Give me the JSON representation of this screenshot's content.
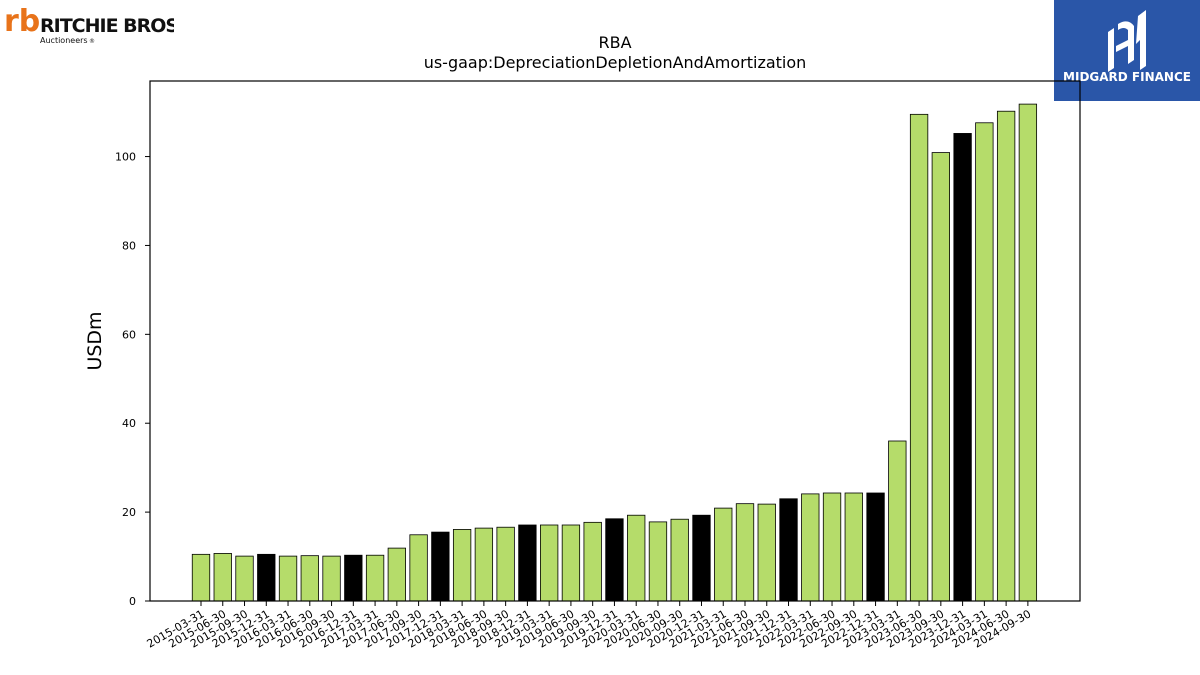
{
  "branding": {
    "left_logo": {
      "mark": "rb",
      "name": "RITCHIE BROS.",
      "tagline": "Auctioneers",
      "trademark": "®",
      "mark_color": "#e8731a"
    },
    "right_logo": {
      "name": "MIDGARD FINANCE",
      "background": "#2a56a8",
      "text_color": "#ffffff"
    }
  },
  "chart_data": {
    "type": "bar",
    "title": "RBA",
    "subtitle": "us-gaap:DepreciationDepletionAndAmortization",
    "xlabel": "",
    "ylabel": "USDm",
    "ylim": [
      0,
      117
    ],
    "yticks": [
      0,
      20,
      40,
      60,
      80,
      100
    ],
    "grid": false,
    "colors": {
      "quarter": "#b5dc6a",
      "year_end": "#000000",
      "edge": "#000000"
    },
    "categories": [
      "2015-03-31",
      "2015-06-30",
      "2015-09-30",
      "2015-12-31",
      "2016-03-31",
      "2016-06-30",
      "2016-09-30",
      "2016-12-31",
      "2017-03-31",
      "2017-06-30",
      "2017-09-30",
      "2017-12-31",
      "2018-03-31",
      "2018-06-30",
      "2018-09-30",
      "2018-12-31",
      "2019-03-31",
      "2019-06-30",
      "2019-09-30",
      "2019-12-31",
      "2020-03-31",
      "2020-06-30",
      "2020-09-30",
      "2020-12-31",
      "2021-03-31",
      "2021-06-30",
      "2021-09-30",
      "2021-12-31",
      "2022-03-31",
      "2022-06-30",
      "2022-09-30",
      "2022-12-31",
      "2023-03-31",
      "2023-06-30",
      "2023-09-30",
      "2023-12-31",
      "2024-03-31",
      "2024-06-30",
      "2024-09-30"
    ],
    "values": [
      10.5,
      10.7,
      10.1,
      10.5,
      10.1,
      10.2,
      10.1,
      10.3,
      10.3,
      11.9,
      14.9,
      15.5,
      16.1,
      16.4,
      16.6,
      17.1,
      17.1,
      17.1,
      17.7,
      18.5,
      19.3,
      17.8,
      18.4,
      19.3,
      20.9,
      21.9,
      21.8,
      23.0,
      24.1,
      24.3,
      24.3,
      24.3,
      36.0,
      109.5,
      100.9,
      105.2,
      107.6,
      110.2,
      111.8
    ],
    "year_end": [
      false,
      false,
      false,
      true,
      false,
      false,
      false,
      true,
      false,
      false,
      false,
      true,
      false,
      false,
      false,
      true,
      false,
      false,
      false,
      true,
      false,
      false,
      false,
      true,
      false,
      false,
      false,
      true,
      false,
      false,
      false,
      true,
      false,
      false,
      false,
      true,
      false,
      false,
      false
    ]
  }
}
